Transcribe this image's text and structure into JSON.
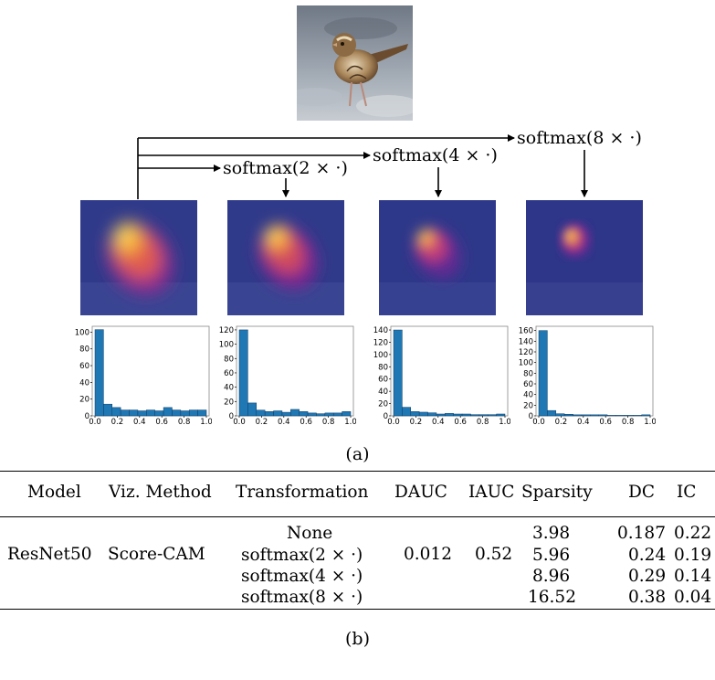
{
  "figure_a": {
    "transforms": [
      {
        "label": "softmax(2 × ·)"
      },
      {
        "label": "softmax(4 × ·)"
      },
      {
        "label": "softmax(8 × ·)"
      }
    ],
    "histograms": [
      {
        "values": [
          103,
          14,
          10,
          7,
          7,
          6,
          7,
          6,
          10,
          7,
          6,
          7,
          7
        ],
        "yticks": [
          0,
          20,
          40,
          60,
          80,
          100
        ],
        "ymax": 107
      },
      {
        "values": [
          120,
          18,
          8,
          6,
          7,
          5,
          9,
          6,
          4,
          3,
          4,
          4,
          6
        ],
        "yticks": [
          0,
          20,
          40,
          60,
          80,
          100,
          120
        ],
        "ymax": 125
      },
      {
        "values": [
          140,
          14,
          7,
          6,
          5,
          3,
          4,
          3,
          3,
          2,
          2,
          2,
          3
        ],
        "yticks": [
          0,
          20,
          40,
          60,
          80,
          100,
          120,
          140
        ],
        "ymax": 146
      },
      {
        "values": [
          160,
          10,
          4,
          3,
          2,
          2,
          2,
          2,
          1,
          1,
          1,
          1,
          2
        ],
        "yticks": [
          0,
          20,
          40,
          60,
          80,
          100,
          120,
          140,
          160
        ],
        "ymax": 168
      }
    ],
    "xticks": [
      "0.0",
      "0.2",
      "0.4",
      "0.6",
      "0.8",
      "1.0"
    ],
    "caption": "(a)"
  },
  "table": {
    "headers": [
      "Model",
      "Viz. Method",
      "Transformation",
      "DAUC",
      "IAUC",
      "Sparsity",
      "DC",
      "IC"
    ],
    "model": "ResNet50",
    "method": "Score-CAM",
    "dauc": "0.012",
    "iauc": "0.52",
    "rows": [
      {
        "transformation": "None",
        "sparsity": "3.98",
        "dc": "0.187",
        "ic": "0.22"
      },
      {
        "transformation": "softmax(2 × ·)",
        "sparsity": "5.96",
        "dc": "0.24",
        "ic": "0.19"
      },
      {
        "transformation": "softmax(4 × ·)",
        "sparsity": "8.96",
        "dc": "0.29",
        "ic": "0.14"
      },
      {
        "transformation": "softmax(8 × ·)",
        "sparsity": "16.52",
        "dc": "0.38",
        "ic": "0.04"
      }
    ]
  },
  "caption_b": "(b)"
}
